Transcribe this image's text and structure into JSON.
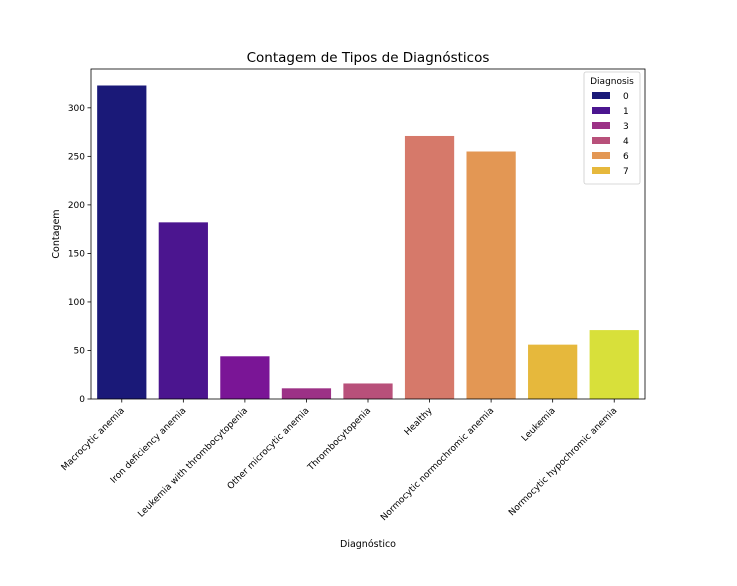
{
  "chart_data": {
    "type": "bar",
    "title": "Contagem de Tipos de Diagnósticos",
    "xlabel": "Diagnóstico",
    "ylabel": "Contagem",
    "categories": [
      "Macrocytic anemia",
      "Iron deficiency anemia",
      "Leukemia with thrombocytopenia",
      "Other microcytic anemia",
      "Thrombocytopenia",
      "Healthy",
      "Normocytic normochromic anemia",
      "Leukemia",
      "Normocytic hypochromic anemia"
    ],
    "values": [
      323,
      182,
      44,
      11,
      16,
      271,
      255,
      56,
      71
    ],
    "bar_colors": [
      "#1a1978",
      "#4b158f",
      "#7a1596",
      "#9c3186",
      "#b8507a",
      "#d6796a",
      "#e39754",
      "#e6b83c",
      "#d8e03a"
    ],
    "ylim": [
      0,
      340
    ],
    "yticks": [
      0,
      50,
      100,
      150,
      200,
      250,
      300
    ],
    "grid": false,
    "legend": {
      "title": "Diagnosis",
      "placement": "top-right",
      "entries": [
        {
          "label": "0",
          "color": "#1a1978"
        },
        {
          "label": "1",
          "color": "#4b158f"
        },
        {
          "label": "3",
          "color": "#9c3186"
        },
        {
          "label": "4",
          "color": "#b8507a"
        },
        {
          "label": "6",
          "color": "#e39754"
        },
        {
          "label": "7",
          "color": "#e6b83c"
        }
      ]
    }
  }
}
